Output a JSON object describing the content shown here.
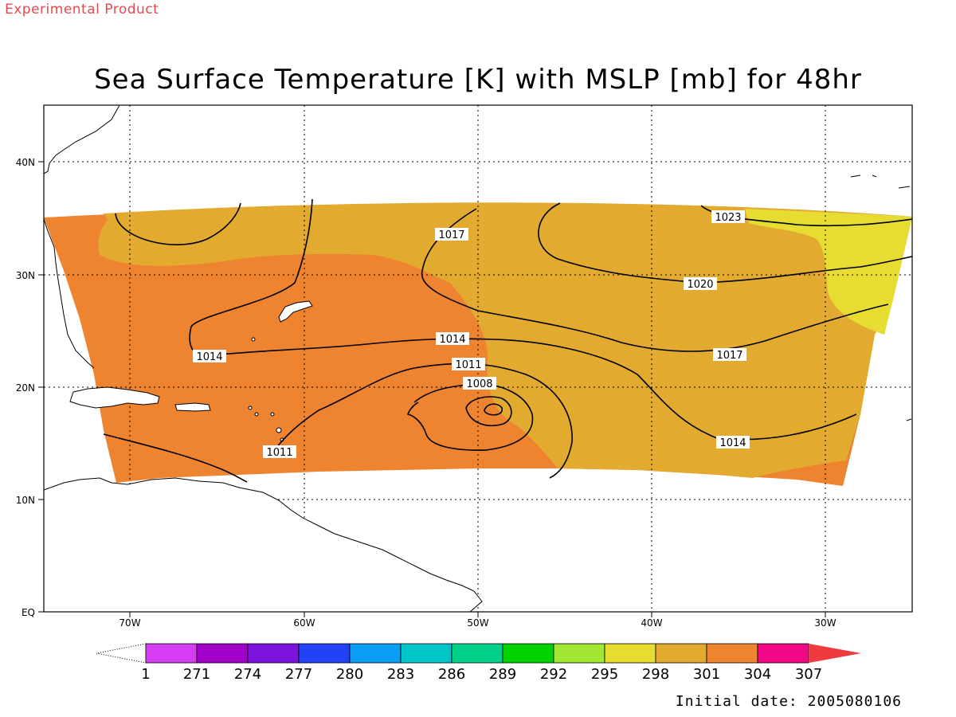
{
  "stamp": "Experimental Product",
  "title": "Sea Surface Temperature [K] with MSLP [mb] for 48hr",
  "footer": {
    "label": "Initial date:",
    "value": "2005080106"
  },
  "map": {
    "lon_range": [
      -75,
      -25
    ],
    "lat_range": [
      0,
      45
    ],
    "grid": "dotted",
    "x_ticks": [
      "70W",
      "60W",
      "50W",
      "40W",
      "30W"
    ],
    "y_ticks": [
      "EQ",
      "10N",
      "20N",
      "30N",
      "40N"
    ],
    "sst_field_colors": {
      "298": "#e6dc32",
      "301": "#e2aa2f",
      "304": "#ee8330"
    },
    "isobar_labels": [
      {
        "text": "1023"
      },
      {
        "text": "1020"
      },
      {
        "text": "1017"
      },
      {
        "text": "1017"
      },
      {
        "text": "1014"
      },
      {
        "text": "1014"
      },
      {
        "text": "1014"
      },
      {
        "text": "1011"
      },
      {
        "text": "1011"
      },
      {
        "text": "1008"
      }
    ]
  },
  "colorbar": {
    "labels": [
      "1",
      "271",
      "274",
      "277",
      "280",
      "283",
      "286",
      "289",
      "292",
      "295",
      "298",
      "301",
      "304",
      "307"
    ],
    "colors": [
      "#d53df5",
      "#a100c8",
      "#7c13dc",
      "#2341f5",
      "#0c9df5",
      "#00c6c8",
      "#00d18a",
      "#00d200",
      "#a0e632",
      "#e6dc32",
      "#e2aa2f",
      "#ee8330",
      "#f00884",
      "#f03a3e"
    ]
  }
}
